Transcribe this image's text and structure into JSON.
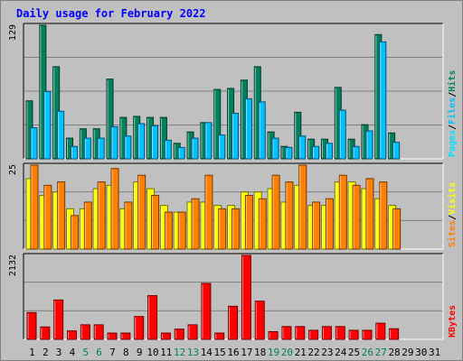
{
  "chart_data": {
    "type": "bar",
    "title": "Daily usage for February 2022",
    "colors": {
      "background": "#c0c0c0",
      "title": "#0000ff",
      "hits": "#00805c",
      "files": "#00c0ff",
      "pages": "#00e0ff",
      "visits": "#ffff00",
      "sites": "#ff8000",
      "kbytes": "#ff0000",
      "weekend_day": "#00805c",
      "weekday": "#000000"
    },
    "x_categories": [
      "1",
      "2",
      "3",
      "4",
      "5",
      "6",
      "7",
      "8",
      "9",
      "10",
      "11",
      "12",
      "13",
      "14",
      "15",
      "16",
      "17",
      "18",
      "19",
      "20",
      "21",
      "22",
      "23",
      "24",
      "25",
      "26",
      "27",
      "28",
      "29",
      "30",
      "31"
    ],
    "weekend_days": [
      "5",
      "6",
      "12",
      "13",
      "19",
      "20",
      "26",
      "27"
    ],
    "panels": [
      {
        "y_max_label": "129",
        "ymax": 129,
        "legend": [
          "Pages",
          "/",
          "Files",
          "/",
          "Hits"
        ],
        "series": [
          {
            "name": "Hits",
            "values": [
              56,
              129,
              89,
              20,
              29,
              29,
              77,
              40,
              41,
              40,
              40,
              15,
              26,
              35,
              67,
              68,
              76,
              89,
              26,
              12,
              45,
              19,
              19,
              69,
              19,
              33,
              120,
              25,
              0,
              0,
              0
            ]
          },
          {
            "name": "Files",
            "values": [
              30,
              65,
              46,
              12,
              20,
              20,
              31,
              22,
              34,
              32,
              18,
              11,
              20,
              35,
              23,
              44,
              58,
              55,
              20,
              11,
              22,
              12,
              15,
              47,
              12,
              27,
              113,
              16,
              0,
              0,
              0
            ]
          },
          {
            "name": "Pages",
            "values": [
              0,
              0,
              0,
              0,
              0,
              0,
              0,
              0,
              0,
              0,
              0,
              0,
              0,
              0,
              0,
              0,
              0,
              0,
              0,
              0,
              0,
              0,
              0,
              0,
              0,
              0,
              0,
              0,
              0,
              0,
              0
            ]
          }
        ]
      },
      {
        "y_max_label": "25",
        "ymax": 25,
        "legend": [
          "Sites",
          "/",
          "Visits"
        ],
        "series": [
          {
            "name": "Visits",
            "values": [
              21,
              16,
              17,
              12,
              12,
              18,
              19,
              12,
              20,
              18,
              13,
              11,
              14,
              14,
              13,
              13,
              17,
              17,
              18,
              14,
              19,
              13,
              13,
              20,
              20,
              18,
              15,
              13,
              0,
              0,
              0
            ]
          },
          {
            "name": "Sites",
            "values": [
              25,
              19,
              20,
              10,
              14,
              20,
              24,
              14,
              22,
              16,
              11,
              11,
              15,
              22,
              12,
              12,
              16,
              15,
              22,
              20,
              25,
              14,
              15,
              22,
              19,
              21,
              20,
              12,
              0,
              0,
              0
            ]
          }
        ]
      },
      {
        "y_max_label": "2132",
        "ymax": 2132,
        "legend": [
          "KBytes"
        ],
        "series": [
          {
            "name": "KBytes",
            "values": [
              680,
              315,
              1000,
              215,
              370,
              370,
              160,
              160,
              580,
              1110,
              160,
              260,
              370,
              1420,
              160,
              840,
              2132,
              970,
              195,
              325,
              325,
              230,
              325,
              325,
              230,
              230,
              410,
              270,
              0,
              0,
              0
            ]
          }
        ]
      }
    ]
  }
}
